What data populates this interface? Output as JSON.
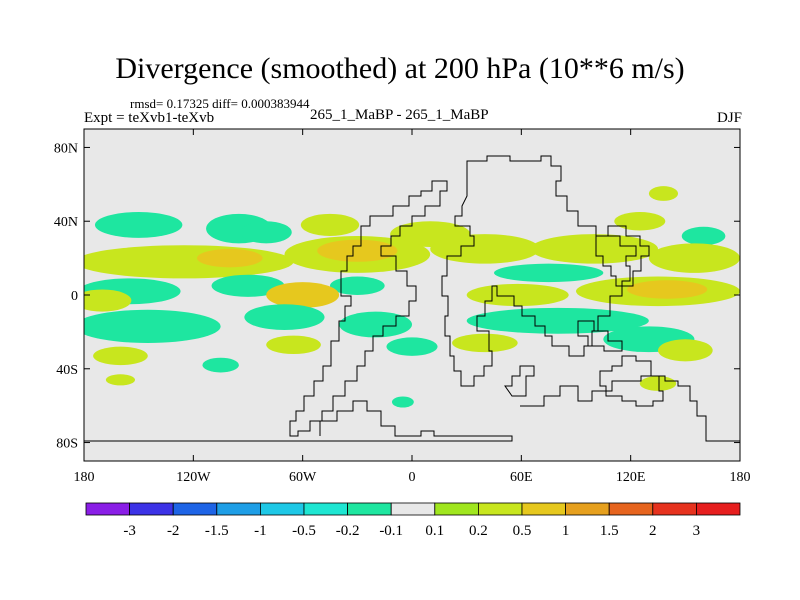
{
  "chart_data": {
    "type": "heatmap",
    "title": "Divergence (smoothed) at 200 hPa (10**6 m/s)",
    "stats": "rmsd= 0.17325 diff= 0.000383944",
    "expt": "Expt = teXvb1-teXvb",
    "cases": "265_1_MaBP - 265_1_MaBP",
    "season": "DJF",
    "x_ticks": [
      "180",
      "120W",
      "60W",
      "0",
      "60E",
      "120E",
      "180"
    ],
    "x_range": [
      -180,
      180
    ],
    "y_ticks": [
      "80N",
      "40N",
      "0",
      "40S",
      "80S"
    ],
    "y_range": [
      -90,
      90
    ],
    "colorbar": {
      "levels": [
        "-3",
        "-2",
        "-1.5",
        "-1",
        "-0.5",
        "-0.2",
        "-0.1",
        "0.1",
        "0.2",
        "0.5",
        "1",
        "1.5",
        "2",
        "3"
      ],
      "colors": [
        "#8a1ee6",
        "#3c32e6",
        "#1e64e6",
        "#1e9ee6",
        "#1ec8e6",
        "#1ee6d2",
        "#1ee6a0",
        "#e8e8e8",
        "#a0e61e",
        "#c8e61e",
        "#e6c81e",
        "#e6a01e",
        "#e6641e",
        "#e6321e",
        "#e61e1e"
      ]
    },
    "blobs": [
      {
        "lon": -150,
        "lat": 38,
        "rx": 24,
        "ry": 7,
        "level": -0.2
      },
      {
        "lon": -95,
        "lat": 36,
        "rx": 18,
        "ry": 8,
        "level": -0.2
      },
      {
        "lon": -80,
        "lat": 34,
        "rx": 14,
        "ry": 6,
        "level": -0.2
      },
      {
        "lon": -45,
        "lat": 38,
        "rx": 16,
        "ry": 6,
        "level": 0.2
      },
      {
        "lon": 10,
        "lat": 33,
        "rx": 22,
        "ry": 7,
        "level": 0.2
      },
      {
        "lon": 125,
        "lat": 40,
        "rx": 14,
        "ry": 5,
        "level": 0.2
      },
      {
        "lon": 160,
        "lat": 32,
        "rx": 12,
        "ry": 5,
        "level": -0.2
      },
      {
        "lon": 138,
        "lat": 55,
        "rx": 8,
        "ry": 4,
        "level": 0.2
      },
      {
        "lon": -125,
        "lat": 18,
        "rx": 60,
        "ry": 9,
        "level": 0.2
      },
      {
        "lon": -100,
        "lat": 20,
        "rx": 18,
        "ry": 5,
        "level": 0.5
      },
      {
        "lon": -30,
        "lat": 22,
        "rx": 40,
        "ry": 10,
        "level": 0.2
      },
      {
        "lon": -30,
        "lat": 24,
        "rx": 22,
        "ry": 6,
        "level": 0.5
      },
      {
        "lon": 40,
        "lat": 25,
        "rx": 30,
        "ry": 8,
        "level": 0.2
      },
      {
        "lon": 100,
        "lat": 25,
        "rx": 35,
        "ry": 8,
        "level": 0.2
      },
      {
        "lon": 155,
        "lat": 20,
        "rx": 25,
        "ry": 8,
        "level": 0.2
      },
      {
        "lon": -155,
        "lat": 2,
        "rx": 28,
        "ry": 7,
        "level": -0.2
      },
      {
        "lon": -90,
        "lat": 5,
        "rx": 20,
        "ry": 6,
        "level": -0.2
      },
      {
        "lon": -30,
        "lat": 5,
        "rx": 15,
        "ry": 5,
        "level": -0.2
      },
      {
        "lon": 75,
        "lat": 12,
        "rx": 30,
        "ry": 5,
        "level": -0.2
      },
      {
        "lon": -170,
        "lat": -3,
        "rx": 16,
        "ry": 6,
        "level": 0.2
      },
      {
        "lon": -60,
        "lat": 0,
        "rx": 20,
        "ry": 7,
        "level": 0.5
      },
      {
        "lon": 58,
        "lat": 0,
        "rx": 28,
        "ry": 6,
        "level": 0.2
      },
      {
        "lon": 135,
        "lat": 2,
        "rx": 45,
        "ry": 8,
        "level": 0.2
      },
      {
        "lon": 140,
        "lat": 3,
        "rx": 22,
        "ry": 5,
        "level": 0.5
      },
      {
        "lon": -145,
        "lat": -17,
        "rx": 40,
        "ry": 9,
        "level": -0.2
      },
      {
        "lon": -70,
        "lat": -12,
        "rx": 22,
        "ry": 7,
        "level": -0.2
      },
      {
        "lon": -20,
        "lat": -16,
        "rx": 20,
        "ry": 7,
        "level": -0.2
      },
      {
        "lon": 80,
        "lat": -14,
        "rx": 50,
        "ry": 7,
        "level": -0.2
      },
      {
        "lon": -65,
        "lat": -27,
        "rx": 15,
        "ry": 5,
        "level": 0.2
      },
      {
        "lon": 40,
        "lat": -26,
        "rx": 18,
        "ry": 5,
        "level": 0.2
      },
      {
        "lon": 0,
        "lat": -28,
        "rx": 14,
        "ry": 5,
        "level": -0.2
      },
      {
        "lon": 130,
        "lat": -24,
        "rx": 25,
        "ry": 7,
        "level": -0.2
      },
      {
        "lon": -160,
        "lat": -33,
        "rx": 15,
        "ry": 5,
        "level": 0.2
      },
      {
        "lon": 150,
        "lat": -30,
        "rx": 15,
        "ry": 6,
        "level": 0.2
      },
      {
        "lon": -105,
        "lat": -38,
        "rx": 10,
        "ry": 4,
        "level": -0.2
      },
      {
        "lon": -160,
        "lat": -46,
        "rx": 8,
        "ry": 3,
        "level": 0.2
      },
      {
        "lon": -5,
        "lat": -58,
        "rx": 6,
        "ry": 3,
        "level": -0.2
      },
      {
        "lon": 135,
        "lat": -48,
        "rx": 10,
        "ry": 4,
        "level": 0.2
      }
    ]
  }
}
